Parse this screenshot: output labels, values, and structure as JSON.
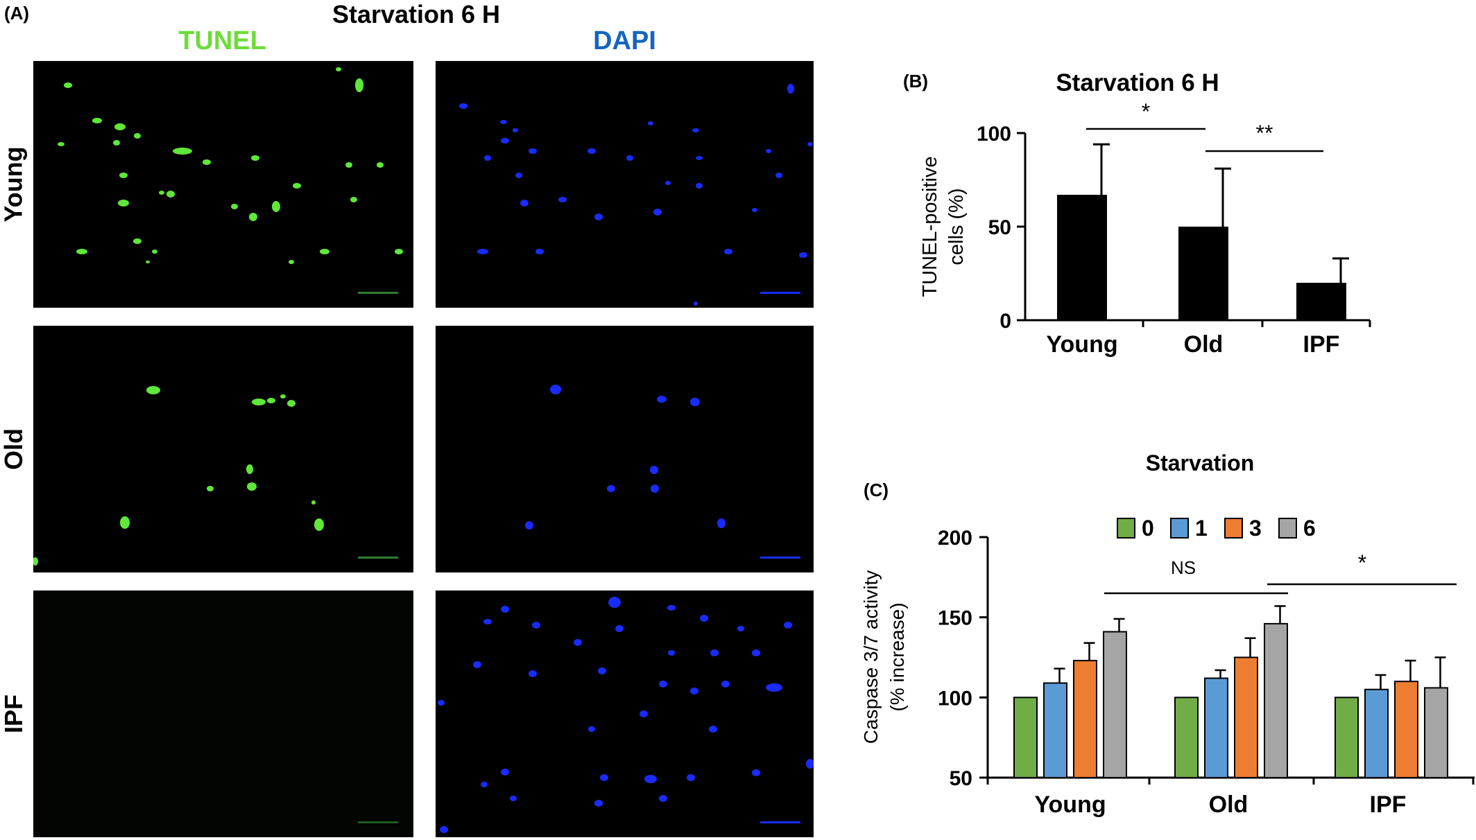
{
  "panel_a": {
    "letter": "(A)",
    "title": "Starvation 6 H",
    "channels": {
      "tunel": "TUNEL",
      "dapi": "DAPI"
    },
    "rows": [
      "Young",
      "Old",
      "IPF"
    ],
    "colors": {
      "tunel": "#5ee83a",
      "dapi": "#1a2bff",
      "tunel_label": "#6ddc3a",
      "dapi_label": "#1565c0"
    }
  },
  "panel_b": {
    "letter": "(B)"
  },
  "panel_c": {
    "letter": "(C)"
  },
  "chart_data": [
    {
      "id": "B",
      "type": "bar",
      "title": "Starvation 6 H",
      "ylabel": "TUNEL-positive cells (%)",
      "xlabel": "",
      "categories": [
        "Young",
        "Old",
        "IPF"
      ],
      "values": [
        67,
        50,
        20
      ],
      "errors": [
        27,
        31,
        13
      ],
      "ylim": [
        0,
        100
      ],
      "yticks": [
        0,
        50,
        100
      ],
      "bar_color": "#000000",
      "significance": [
        {
          "from": "Young",
          "to": "Old",
          "label": "*"
        },
        {
          "from": "Old",
          "to": "IPF",
          "label": "**"
        }
      ]
    },
    {
      "id": "C",
      "type": "bar",
      "title": "Starvation",
      "ylabel": "Caspase 3/7 activity (% increase)",
      "xlabel": "",
      "categories": [
        "Young",
        "Old",
        "IPF"
      ],
      "legend_position": "top",
      "series": [
        {
          "name": "0",
          "color": "#70ad47",
          "values": [
            100,
            100,
            100
          ],
          "errors": [
            0,
            0,
            0
          ]
        },
        {
          "name": "1",
          "color": "#5b9bd5",
          "values": [
            109,
            112,
            105
          ],
          "errors": [
            9,
            5,
            9
          ]
        },
        {
          "name": "3",
          "color": "#ed7d31",
          "values": [
            123,
            125,
            110
          ],
          "errors": [
            11,
            12,
            13
          ]
        },
        {
          "name": "6",
          "color": "#a5a5a5",
          "values": [
            141,
            146,
            106
          ],
          "errors": [
            8,
            11,
            19
          ]
        }
      ],
      "ylim": [
        50,
        200
      ],
      "yticks": [
        50,
        100,
        150,
        200
      ],
      "significance": [
        {
          "from": "Young",
          "to": "Old",
          "label": "NS"
        },
        {
          "from": "Old",
          "to": "IPF",
          "label": "*"
        }
      ]
    }
  ]
}
